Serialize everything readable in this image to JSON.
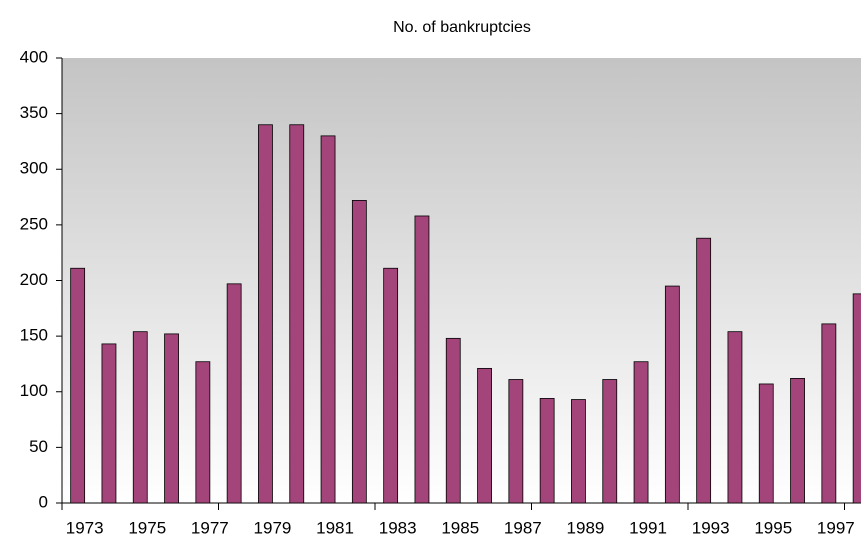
{
  "chart_data": {
    "type": "bar",
    "title": "No. of bankruptcies",
    "categories": [
      "1973",
      null,
      "1975",
      null,
      "1977",
      null,
      "1979",
      null,
      "1981",
      null,
      "1983",
      null,
      "1985",
      null,
      "1987",
      null,
      "1989",
      null,
      "1991",
      null,
      "1993",
      null,
      "1995",
      null,
      "1997",
      null
    ],
    "values": [
      211,
      143,
      154,
      152,
      127,
      197,
      340,
      340,
      330,
      272,
      211,
      258,
      148,
      121,
      111,
      94,
      93,
      111,
      127,
      195,
      238,
      154,
      107,
      112,
      161,
      188
    ],
    "color": "#a3457a",
    "ylim": [
      0,
      400
    ],
    "yticks": [
      0,
      50,
      100,
      150,
      200,
      250,
      300,
      350,
      400
    ],
    "grid": false
  }
}
